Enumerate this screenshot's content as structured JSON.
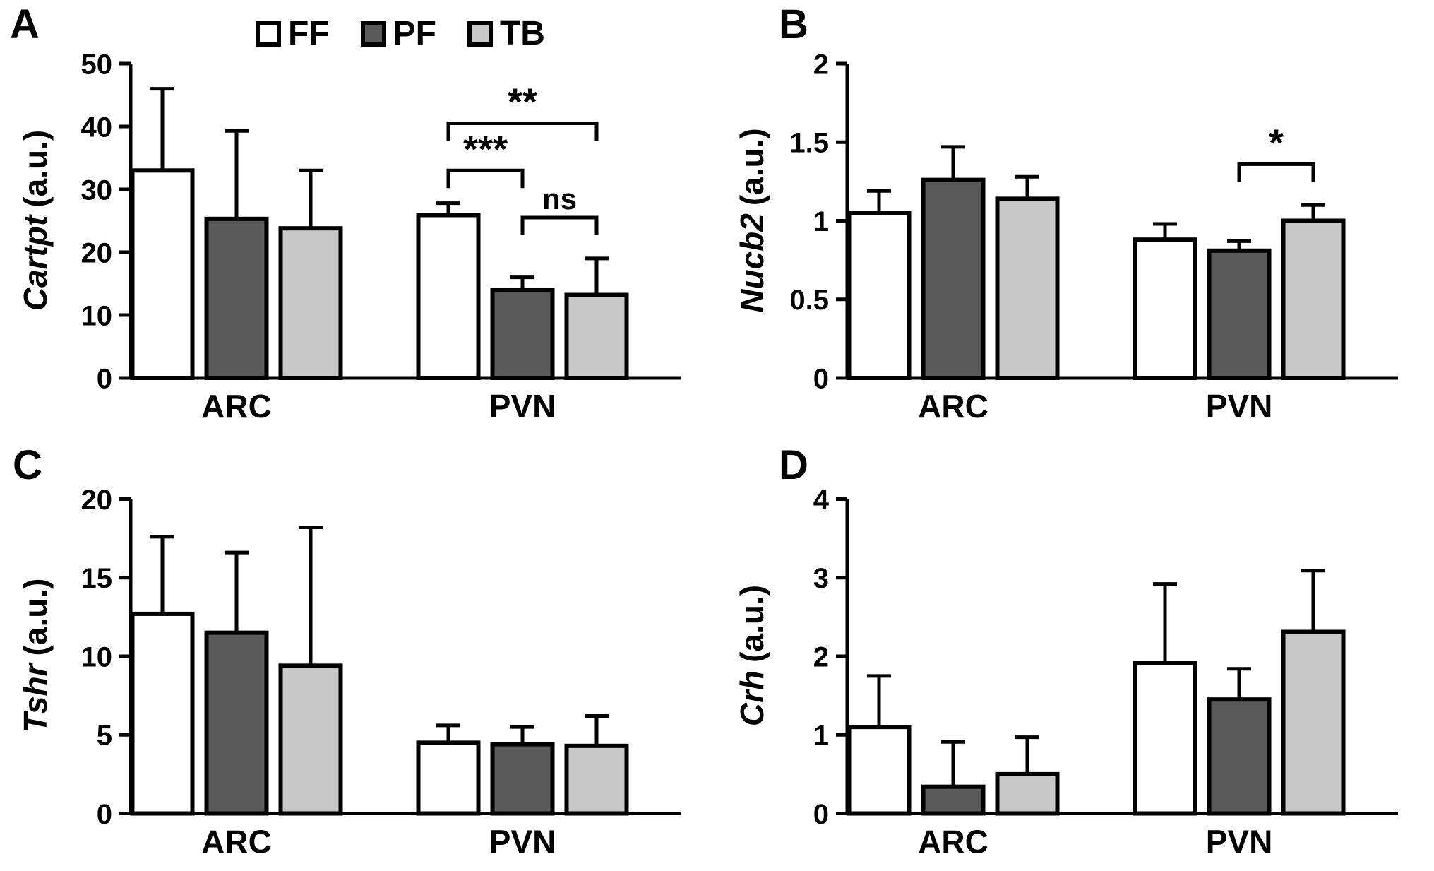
{
  "chart_data": [
    {
      "type": "bar",
      "panel_label": "A",
      "ylabel_gene": "Cartpt",
      "ylabel_unit": "(a.u.)",
      "ylim": [
        0,
        50
      ],
      "yticks": [
        0,
        10,
        20,
        30,
        40,
        50
      ],
      "ytick_labels": [
        "0",
        "10",
        "20",
        "30",
        "40",
        "50"
      ],
      "categories": [
        "ARC",
        "PVN"
      ],
      "series": [
        {
          "name": "FF",
          "color": "#ffffff",
          "values": [
            33,
            25.9
          ],
          "errors": [
            13,
            1.9
          ]
        },
        {
          "name": "PF",
          "color": "#595959",
          "values": [
            25.3,
            14
          ],
          "errors": [
            14,
            2
          ]
        },
        {
          "name": "TB",
          "color": "#c8c8c8",
          "values": [
            23.8,
            13.2
          ],
          "errors": [
            9.2,
            5.8
          ]
        }
      ],
      "grid": false,
      "brackets": [
        {
          "category": 1,
          "from_series": 0,
          "to_series": 1,
          "height": 33,
          "label": "***"
        },
        {
          "category": 1,
          "from_series": 0,
          "to_series": 2,
          "height": 40.5,
          "label": "**"
        },
        {
          "category": 1,
          "from_series": 1,
          "to_series": 2,
          "height": 25.5,
          "label": "ns"
        }
      ],
      "show_legend": true
    },
    {
      "type": "bar",
      "panel_label": "B",
      "ylabel_gene": "Nucb2",
      "ylabel_unit": "(a.u.)",
      "ylim": [
        0,
        2
      ],
      "yticks": [
        0,
        0.5,
        1,
        1.5,
        2
      ],
      "ytick_labels": [
        "0",
        "0.5",
        "1",
        "1.5",
        "2"
      ],
      "categories": [
        "ARC",
        "PVN"
      ],
      "series": [
        {
          "name": "FF",
          "color": "#ffffff",
          "values": [
            1.05,
            0.88
          ],
          "errors": [
            0.14,
            0.1
          ]
        },
        {
          "name": "PF",
          "color": "#595959",
          "values": [
            1.26,
            0.81
          ],
          "errors": [
            0.21,
            0.06
          ]
        },
        {
          "name": "TB",
          "color": "#c8c8c8",
          "values": [
            1.14,
            1.0
          ],
          "errors": [
            0.14,
            0.1
          ]
        }
      ],
      "grid": false,
      "brackets": [
        {
          "category": 1,
          "from_series": 1,
          "to_series": 2,
          "height": 1.36,
          "label": "*"
        }
      ],
      "show_legend": false
    },
    {
      "type": "bar",
      "panel_label": "C",
      "ylabel_gene": "Tshr",
      "ylabel_unit": "(a.u.)",
      "ylim": [
        0,
        20
      ],
      "yticks": [
        0,
        5,
        10,
        15,
        20
      ],
      "ytick_labels": [
        "0",
        "5",
        "10",
        "15",
        "20"
      ],
      "categories": [
        "ARC",
        "PVN"
      ],
      "series": [
        {
          "name": "FF",
          "color": "#ffffff",
          "values": [
            12.7,
            4.5
          ],
          "errors": [
            4.9,
            1.1
          ]
        },
        {
          "name": "PF",
          "color": "#595959",
          "values": [
            11.5,
            4.4
          ],
          "errors": [
            5.1,
            1.1
          ]
        },
        {
          "name": "TB",
          "color": "#c8c8c8",
          "values": [
            9.4,
            4.3
          ],
          "errors": [
            8.8,
            1.9
          ]
        }
      ],
      "grid": false,
      "brackets": [],
      "show_legend": false
    },
    {
      "type": "bar",
      "panel_label": "D",
      "ylabel_gene": "Crh",
      "ylabel_unit": "(a.u.)",
      "ylim": [
        0,
        4
      ],
      "yticks": [
        0,
        1,
        2,
        3,
        4
      ],
      "ytick_labels": [
        "0",
        "1",
        "2",
        "3",
        "4"
      ],
      "categories": [
        "ARC",
        "PVN"
      ],
      "series": [
        {
          "name": "FF",
          "color": "#ffffff",
          "values": [
            1.1,
            1.91
          ],
          "errors": [
            0.65,
            1.01
          ]
        },
        {
          "name": "PF",
          "color": "#595959",
          "values": [
            0.34,
            1.45
          ],
          "errors": [
            0.57,
            0.39
          ]
        },
        {
          "name": "TB",
          "color": "#c8c8c8",
          "values": [
            0.5,
            2.31
          ],
          "errors": [
            0.47,
            0.78
          ]
        }
      ],
      "grid": false,
      "brackets": [],
      "show_legend": false
    }
  ],
  "legend": {
    "position": "top of panel A",
    "items": [
      {
        "label": "FF",
        "color": "#ffffff"
      },
      {
        "label": "PF",
        "color": "#595959"
      },
      {
        "label": "TB",
        "color": "#c8c8c8"
      }
    ]
  }
}
